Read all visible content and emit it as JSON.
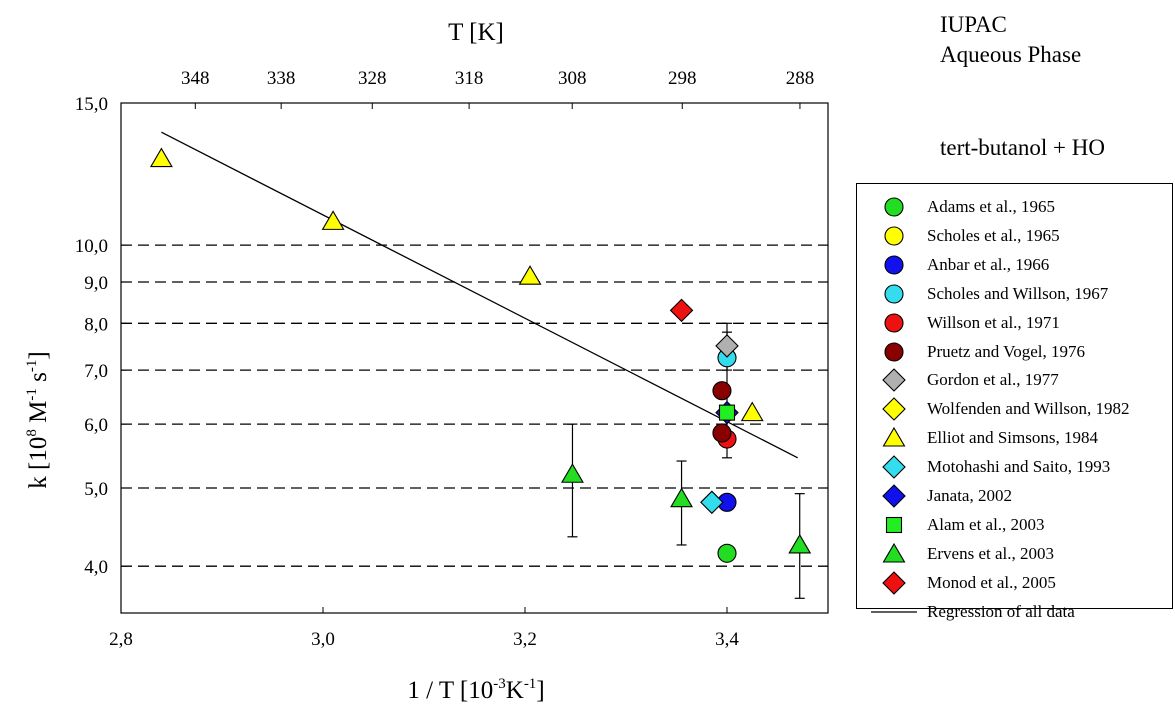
{
  "annotations": {
    "source": "IUPAC",
    "phase": "Aqueous Phase",
    "reaction": "tert-butanol + HO"
  },
  "axes": {
    "top_title": "T [K]",
    "x_title": "1 / T [10",
    "x_title_sup": "-3",
    "x_title_end": "K",
    "x_title_sup2": "-1",
    "x_title_close": "]",
    "y_title": "k [10",
    "y_title_sup": "8",
    "y_title_mid": " M",
    "y_title_sup2": "-1",
    "y_title_mid2": " s",
    "y_title_sup3": "-1",
    "y_title_close": "]"
  },
  "chart_data": {
    "type": "scatter",
    "x_scale": "linear",
    "y_scale": "log",
    "xlim": [
      2.8,
      3.5
    ],
    "ylim": [
      3.5,
      15.0
    ],
    "x_ticks": [
      2.8,
      3.0,
      3.2,
      3.4
    ],
    "x_tick_labels": [
      "2,8",
      "3,0",
      "3,2",
      "3,4"
    ],
    "y_ticks": [
      4.0,
      5.0,
      6.0,
      7.0,
      8.0,
      9.0,
      10.0,
      15.0
    ],
    "y_tick_labels": [
      "4,0",
      "5,0",
      "6,0",
      "7,0",
      "8,0",
      "9,0",
      "10,0",
      "15,0"
    ],
    "dashed_gridlines_y": [
      4.0,
      5.0,
      6.0,
      7.0,
      8.0,
      9.0,
      10.0
    ],
    "top_axis_ticks_T": [
      348,
      338,
      328,
      318,
      308,
      298,
      288
    ],
    "top_axis_tick_labels": [
      "348",
      "338",
      "328",
      "318",
      "308",
      "298",
      "288"
    ],
    "legend_position": "right, outside plot",
    "series": [
      {
        "name": "Adams et al., 1965",
        "marker": "circle",
        "color": "#22dd22",
        "points": [
          {
            "x": 3.4,
            "y": 4.15
          }
        ]
      },
      {
        "name": "Scholes et al., 1965",
        "marker": "circle",
        "color": "#ffff00",
        "points": []
      },
      {
        "name": "Anbar et al., 1966",
        "marker": "circle",
        "color": "#1111ee",
        "points": [
          {
            "x": 3.4,
            "y": 4.8
          }
        ]
      },
      {
        "name": "Scholes and Willson, 1967",
        "marker": "circle",
        "color": "#33ddee",
        "points": [
          {
            "x": 3.4,
            "y": 7.25
          }
        ]
      },
      {
        "name": "Willson et al., 1971",
        "marker": "circle",
        "color": "#ee1111",
        "points": [
          {
            "x": 3.4,
            "y": 5.75
          }
        ]
      },
      {
        "name": "Pruetz and Vogel, 1976",
        "marker": "circle",
        "color": "#880000",
        "points": [
          {
            "x": 3.395,
            "y": 6.6
          },
          {
            "x": 3.395,
            "y": 5.85
          }
        ]
      },
      {
        "name": "Gordon et al., 1977",
        "marker": "diamond",
        "color": "#b0b0b0",
        "points": [
          {
            "x": 3.4,
            "y": 7.5,
            "error": [
              7.0,
              8.0
            ]
          }
        ]
      },
      {
        "name": "Wolfenden and Willson, 1982",
        "marker": "diamond",
        "color": "#ffff00",
        "points": []
      },
      {
        "name": "Elliot and Simsons, 1984",
        "marker": "triangle",
        "color": "#ffff00",
        "points": [
          {
            "x": 2.84,
            "y": 12.8
          },
          {
            "x": 3.01,
            "y": 10.7
          },
          {
            "x": 3.205,
            "y": 9.15
          },
          {
            "x": 3.425,
            "y": 6.2
          }
        ]
      },
      {
        "name": "Motohashi and Saito, 1993",
        "marker": "diamond",
        "color": "#33ddee",
        "points": [
          {
            "x": 3.385,
            "y": 4.8
          }
        ]
      },
      {
        "name": "Janata, 2002",
        "marker": "diamond",
        "color": "#1111ee",
        "points": [
          {
            "x": 3.4,
            "y": 6.2
          }
        ]
      },
      {
        "name": "Alam et al., 2003",
        "marker": "square",
        "color": "#22ee22",
        "points": [
          {
            "x": 3.4,
            "y": 6.2,
            "error": [
              5.45,
              7.8
            ]
          }
        ]
      },
      {
        "name": "Ervens et al., 2003",
        "marker": "triangle",
        "color": "#22dd22",
        "points": [
          {
            "x": 3.247,
            "y": 5.2,
            "error": [
              4.35,
              6.0
            ]
          },
          {
            "x": 3.355,
            "y": 4.85,
            "error": [
              4.25,
              5.4
            ]
          },
          {
            "x": 3.472,
            "y": 4.25,
            "error": [
              3.65,
              4.92
            ]
          }
        ]
      },
      {
        "name": "Monod et al., 2005",
        "marker": "diamond",
        "color": "#ee1111",
        "points": [
          {
            "x": 3.355,
            "y": 8.3
          }
        ]
      }
    ],
    "regression": {
      "name": "Regression of all data",
      "x": [
        2.84,
        3.47
      ],
      "y": [
        13.8,
        5.45
      ]
    }
  }
}
